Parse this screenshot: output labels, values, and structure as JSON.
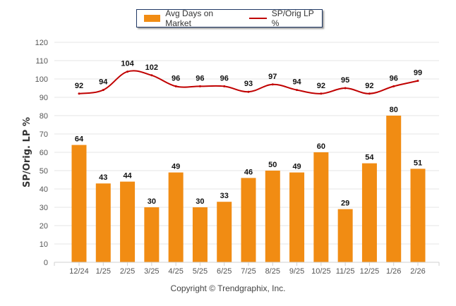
{
  "chart_data": {
    "type": "bar",
    "title": "",
    "xlabel": "",
    "ylabel": "SP/Orig. LP %",
    "ylim": [
      0,
      120
    ],
    "yticks": [
      0,
      10,
      20,
      30,
      40,
      50,
      60,
      70,
      80,
      90,
      100,
      110,
      120
    ],
    "grid": true,
    "legend_position": "top-center",
    "categories": [
      "12/24",
      "1/25",
      "2/25",
      "3/25",
      "4/25",
      "5/25",
      "6/25",
      "7/25",
      "8/25",
      "9/25",
      "10/25",
      "11/25",
      "12/25",
      "1/26",
      "2/26"
    ],
    "series": [
      {
        "name": "Avg Days on Market",
        "type": "bar",
        "color": "#F18C13",
        "values": [
          64,
          43,
          44,
          30,
          49,
          30,
          33,
          46,
          50,
          49,
          60,
          29,
          54,
          80,
          51
        ]
      },
      {
        "name": "SP/Orig LP %",
        "type": "line",
        "color": "#C00000",
        "values": [
          92,
          94,
          104,
          102,
          96,
          96,
          96,
          93,
          97,
          94,
          92,
          95,
          92,
          96,
          99
        ]
      }
    ]
  },
  "legend": {
    "bar_label": "Avg Days on Market",
    "line_label": "SP/Orig LP %"
  },
  "footer": {
    "copyright": "Copyright © Trendgraphix, Inc."
  }
}
